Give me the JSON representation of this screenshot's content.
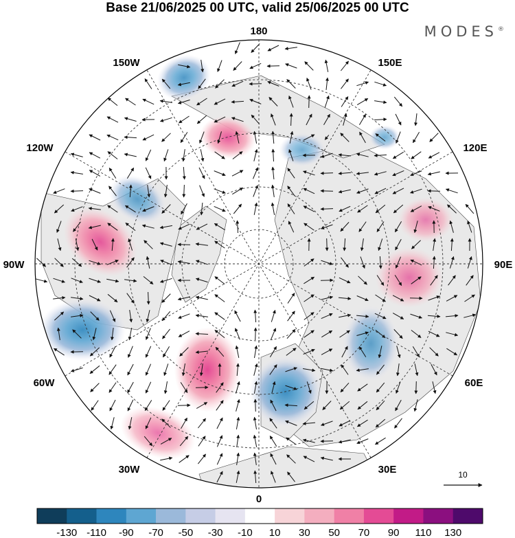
{
  "title": "Base 21/06/2025 00 UTC, valid 25/06/2025 00 UTC",
  "brand": "MODES",
  "brand_mark": "®",
  "longitude_labels": {
    "top": "180",
    "top_left": "150W",
    "top_right": "150E",
    "upper_left": "120W",
    "upper_right": "120E",
    "left": "90W",
    "right": "90E",
    "lower_left": "60W",
    "lower_right": "60E",
    "bottom_left": "30W",
    "bottom_right": "30E",
    "bottom": "0"
  },
  "reference_vector": {
    "label": "10"
  },
  "colorbar": {
    "labels": [
      "-130",
      "-110",
      "-90",
      "-70",
      "-50",
      "-30",
      "-10",
      "10",
      "30",
      "50",
      "70",
      "90",
      "110",
      "130"
    ],
    "colors": [
      "#0f3d5a",
      "#145f8c",
      "#2e86bd",
      "#5ea6d2",
      "#9bb9da",
      "#c6cde6",
      "#e6e4f1",
      "#ffffff",
      "#f7d4d8",
      "#f4aebf",
      "#f080a6",
      "#e44b95",
      "#c21b87",
      "#8b0f7f",
      "#4e0a6b"
    ]
  },
  "anomaly_centers": [
    {
      "sign": "negative",
      "level": 70
    },
    {
      "sign": "positive",
      "level": 90
    },
    {
      "sign": "negative",
      "level": 50
    },
    {
      "sign": "positive",
      "level": 90
    },
    {
      "sign": "negative",
      "level": 90
    },
    {
      "sign": "positive",
      "level": 110
    },
    {
      "sign": "negative",
      "level": 90
    },
    {
      "sign": "negative",
      "level": 50
    },
    {
      "sign": "positive",
      "level": 50
    },
    {
      "sign": "positive",
      "level": 50
    },
    {
      "sign": "negative",
      "level": 30
    },
    {
      "sign": "positive",
      "level": 30
    },
    {
      "sign": "negative",
      "level": 30
    }
  ]
}
